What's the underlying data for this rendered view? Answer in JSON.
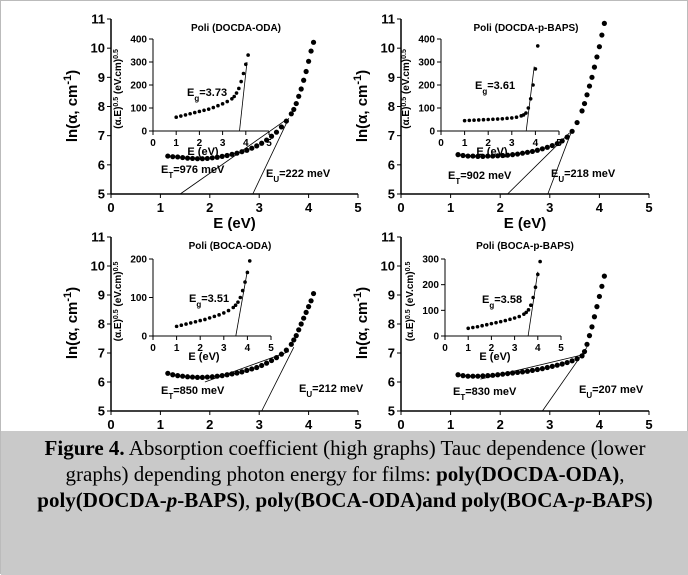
{
  "chart_data": [
    {
      "type": "scatter",
      "title": "Poli (DOCDA-ODA)",
      "xlabel": "E (eV)",
      "ylabel": [
        {
          "text": "ln(α, cm"
        },
        {
          "text": "-1",
          "sup": true
        },
        {
          "text": ")"
        }
      ],
      "x": [
        1.15,
        1.25,
        1.35,
        1.45,
        1.55,
        1.65,
        1.75,
        1.85,
        1.95,
        2.05,
        2.15,
        2.25,
        2.35,
        2.45,
        2.55,
        2.65,
        2.75,
        2.85,
        2.95,
        3.05,
        3.15,
        3.25,
        3.35,
        3.45,
        3.55,
        3.65,
        3.7,
        3.75,
        3.8,
        3.85,
        3.9,
        3.95,
        4.0,
        4.05,
        4.1
      ],
      "values": [
        6.3,
        6.28,
        6.27,
        6.25,
        6.23,
        6.22,
        6.21,
        6.21,
        6.22,
        6.24,
        6.26,
        6.29,
        6.32,
        6.36,
        6.4,
        6.45,
        6.5,
        6.57,
        6.65,
        6.74,
        6.85,
        6.98,
        7.12,
        7.3,
        7.5,
        7.75,
        7.9,
        8.1,
        8.35,
        8.6,
        8.9,
        9.2,
        9.55,
        9.9,
        10.2
      ],
      "color": "#000000",
      "fits": [
        {
          "x": [
            1.4,
            3.55
          ],
          "values": [
            5.0,
            7.55
          ]
        },
        {
          "x": [
            2.87,
            3.6
          ],
          "values": [
            5.0,
            7.6
          ]
        }
      ],
      "annotations": [
        [
          {
            "text": "E"
          },
          {
            "text": "T",
            "sub": true
          },
          {
            "text": "=976 meV"
          }
        ],
        [
          {
            "text": "E"
          },
          {
            "text": "U",
            "sub": true
          },
          {
            "text": "=222 meV"
          }
        ]
      ],
      "xlim": [
        0,
        5
      ],
      "ylim": [
        5,
        11
      ],
      "xticks": [
        0,
        1,
        2,
        3,
        4,
        5
      ],
      "yticks": [
        5,
        6,
        7,
        8,
        9,
        10,
        11
      ],
      "inset": {
        "type": "scatter",
        "xlabel": "E (eV)",
        "ylabel": [
          {
            "text": "(α.E)"
          },
          {
            "text": "0.5",
            "sup": true
          },
          {
            "text": " (eV.cm)"
          },
          {
            "text": "0.5",
            "sup": true
          }
        ],
        "x": [
          1.0,
          1.2,
          1.4,
          1.6,
          1.8,
          2.0,
          2.2,
          2.4,
          2.6,
          2.8,
          3.0,
          3.2,
          3.4,
          3.5,
          3.6,
          3.7,
          3.8,
          3.9,
          4.0,
          4.1
        ],
        "values": [
          60,
          65,
          70,
          75,
          80,
          85,
          90,
          95,
          102,
          110,
          118,
          128,
          140,
          150,
          165,
          185,
          215,
          250,
          290,
          330
        ],
        "color": "#000000",
        "fits": [
          {
            "x": [
              3.73,
              4.05
            ],
            "values": [
              0,
              300
            ]
          }
        ],
        "annotations": [
          [
            {
              "text": "E"
            },
            {
              "text": "g",
              "sub": true
            },
            {
              "text": "=3.73"
            }
          ]
        ],
        "xlim": [
          0,
          5
        ],
        "ylim": [
          0,
          400
        ],
        "xticks": [
          0,
          1,
          2,
          3,
          4,
          5
        ],
        "yticks": [
          0,
          100,
          200,
          300,
          400
        ]
      }
    },
    {
      "type": "scatter",
      "title": "Poli (DOCDA-p-BAPS)",
      "xlabel": "E (eV)",
      "ylabel": [
        {
          "text": "ln(α, cm"
        },
        {
          "text": "-1",
          "sup": true
        },
        {
          "text": ")"
        }
      ],
      "x": [
        1.15,
        1.25,
        1.35,
        1.45,
        1.55,
        1.65,
        1.75,
        1.85,
        1.95,
        2.05,
        2.15,
        2.25,
        2.35,
        2.45,
        2.55,
        2.65,
        2.75,
        2.85,
        2.95,
        3.05,
        3.15,
        3.25,
        3.35,
        3.45,
        3.55,
        3.65,
        3.7,
        3.75,
        3.8,
        3.85,
        3.9,
        3.95,
        4.0,
        4.05,
        4.1
      ],
      "values": [
        6.35,
        6.32,
        6.3,
        6.3,
        6.29,
        6.29,
        6.3,
        6.3,
        6.31,
        6.32,
        6.33,
        6.35,
        6.37,
        6.4,
        6.43,
        6.46,
        6.5,
        6.55,
        6.6,
        6.66,
        6.73,
        6.82,
        6.95,
        7.15,
        7.45,
        7.85,
        8.1,
        8.4,
        8.7,
        9.0,
        9.35,
        9.7,
        10.05,
        10.45,
        10.85
      ],
      "color": "#000000",
      "fits": [
        {
          "x": [
            2.15,
            3.4
          ],
          "values": [
            5.0,
            7.1
          ]
        },
        {
          "x": [
            2.96,
            3.45
          ],
          "values": [
            5.0,
            7.2
          ]
        }
      ],
      "annotations": [
        [
          {
            "text": "E"
          },
          {
            "text": "T",
            "sub": true
          },
          {
            "text": "=902 meV"
          }
        ],
        [
          {
            "text": "E"
          },
          {
            "text": "U",
            "sub": true
          },
          {
            "text": "=218 meV"
          }
        ]
      ],
      "xlim": [
        0,
        5
      ],
      "ylim": [
        5,
        11
      ],
      "xticks": [
        0,
        1,
        2,
        3,
        4,
        5
      ],
      "yticks": [
        5,
        6,
        7,
        8,
        9,
        10,
        11
      ],
      "inset": {
        "type": "scatter",
        "xlabel": "E (eV)",
        "ylabel": [
          {
            "text": "(α.E)"
          },
          {
            "text": "0.5",
            "sup": true
          },
          {
            "text": " (eV.cm)"
          },
          {
            "text": "0.5",
            "sup": true
          }
        ],
        "x": [
          1.0,
          1.2,
          1.4,
          1.6,
          1.8,
          2.0,
          2.2,
          2.4,
          2.6,
          2.8,
          3.0,
          3.2,
          3.4,
          3.5,
          3.6,
          3.7,
          3.8,
          3.9,
          4.0,
          4.1
        ],
        "values": [
          45,
          46,
          47,
          48,
          49,
          50,
          51,
          52,
          53,
          55,
          57,
          60,
          66,
          70,
          78,
          100,
          140,
          200,
          270,
          370
        ],
        "color": "#000000",
        "fits": [
          {
            "x": [
              3.61,
              3.95
            ],
            "values": [
              0,
              280
            ]
          }
        ],
        "annotations": [
          [
            {
              "text": "E"
            },
            {
              "text": "g",
              "sub": true
            },
            {
              "text": "=3.61"
            }
          ]
        ],
        "xlim": [
          0,
          5
        ],
        "ylim": [
          0,
          400
        ],
        "xticks": [
          0,
          1,
          2,
          3,
          4,
          5
        ],
        "yticks": [
          0,
          100,
          200,
          300,
          400
        ]
      }
    },
    {
      "type": "scatter",
      "title": "Poli (BOCA-ODA)",
      "xlabel": "E (eV)",
      "ylabel": [
        {
          "text": "ln(α, cm"
        },
        {
          "text": "-1",
          "sup": true
        },
        {
          "text": ")"
        }
      ],
      "x": [
        1.15,
        1.25,
        1.35,
        1.45,
        1.55,
        1.65,
        1.75,
        1.85,
        1.95,
        2.05,
        2.15,
        2.25,
        2.35,
        2.45,
        2.55,
        2.65,
        2.75,
        2.85,
        2.95,
        3.05,
        3.15,
        3.25,
        3.35,
        3.45,
        3.55,
        3.65,
        3.7,
        3.75,
        3.8,
        3.85,
        3.9,
        3.95,
        4.0,
        4.05,
        4.1
      ],
      "values": [
        6.3,
        6.25,
        6.22,
        6.2,
        6.18,
        6.17,
        6.16,
        6.16,
        6.17,
        6.18,
        6.2,
        6.22,
        6.25,
        6.28,
        6.31,
        6.35,
        6.4,
        6.45,
        6.5,
        6.57,
        6.65,
        6.74,
        6.84,
        6.96,
        7.1,
        7.3,
        7.45,
        7.6,
        7.8,
        8.0,
        8.2,
        8.4,
        8.6,
        8.8,
        9.05
      ],
      "color": "#000000",
      "fits": [
        {
          "x": [
            1.9,
            3.6
          ],
          "values": [
            6.0,
            7.05
          ]
        },
        {
          "x": [
            3.05,
            3.7
          ],
          "values": [
            5.0,
            7.2
          ]
        }
      ],
      "annotations": [
        [
          {
            "text": "E"
          },
          {
            "text": "T",
            "sub": true
          },
          {
            "text": "=850 meV"
          }
        ],
        [
          {
            "text": "E"
          },
          {
            "text": "U",
            "sub": true
          },
          {
            "text": "=212 meV"
          }
        ]
      ],
      "xlim": [
        0,
        5
      ],
      "ylim": [
        5,
        11
      ],
      "xticks": [
        0,
        1,
        2,
        3,
        4,
        5
      ],
      "yticks": [
        5,
        6,
        7,
        8,
        9,
        10,
        11
      ],
      "inset": {
        "type": "scatter",
        "xlabel": "E (eV)",
        "ylabel": [
          {
            "text": "(α.E)"
          },
          {
            "text": "0.5",
            "sup": true
          },
          {
            "text": " (eV.cm)"
          },
          {
            "text": "0.5",
            "sup": true
          }
        ],
        "x": [
          1.0,
          1.2,
          1.4,
          1.6,
          1.8,
          2.0,
          2.2,
          2.4,
          2.6,
          2.8,
          3.0,
          3.2,
          3.4,
          3.5,
          3.6,
          3.7,
          3.8,
          3.9,
          4.0,
          4.1
        ],
        "values": [
          25,
          28,
          31,
          34,
          37,
          40,
          43,
          47,
          51,
          55,
          60,
          66,
          74,
          80,
          88,
          100,
          118,
          140,
          165,
          195
        ],
        "color": "#000000",
        "fits": [
          {
            "x": [
              3.51,
              4.0
            ],
            "values": [
              0,
              170
            ]
          }
        ],
        "annotations": [
          [
            {
              "text": "E"
            },
            {
              "text": "g",
              "sub": true
            },
            {
              "text": "=3.51"
            }
          ]
        ],
        "xlim": [
          0,
          5
        ],
        "ylim": [
          0,
          200
        ],
        "xticks": [
          0,
          1,
          2,
          3,
          4,
          5
        ],
        "yticks": [
          0,
          100,
          200
        ]
      }
    },
    {
      "type": "scatter",
      "title": "Poli (BOCA-p-BAPS)",
      "xlabel": "E (eV)",
      "ylabel": [
        {
          "text": "ln(α, cm"
        },
        {
          "text": "-1",
          "sup": true
        },
        {
          "text": ")"
        }
      ],
      "x": [
        1.15,
        1.25,
        1.35,
        1.45,
        1.55,
        1.65,
        1.75,
        1.85,
        1.95,
        2.05,
        2.15,
        2.25,
        2.35,
        2.45,
        2.55,
        2.65,
        2.75,
        2.85,
        2.95,
        3.05,
        3.15,
        3.25,
        3.35,
        3.45,
        3.55,
        3.65,
        3.7,
        3.75,
        3.8,
        3.85,
        3.9,
        3.95,
        4.0,
        4.05,
        4.1
      ],
      "values": [
        6.25,
        6.22,
        6.2,
        6.2,
        6.2,
        6.21,
        6.22,
        6.23,
        6.25,
        6.27,
        6.29,
        6.31,
        6.33,
        6.35,
        6.37,
        6.4,
        6.43,
        6.46,
        6.5,
        6.54,
        6.58,
        6.62,
        6.67,
        6.73,
        6.8,
        6.9,
        7.05,
        7.3,
        7.6,
        7.9,
        8.25,
        8.6,
        8.95,
        9.3,
        9.65
      ],
      "color": "#000000",
      "fits": [
        {
          "x": [
            1.6,
            3.7
          ],
          "values": [
            6.1,
            6.95
          ]
        },
        {
          "x": [
            2.85,
            3.75
          ],
          "values": [
            5.0,
            7.2
          ]
        }
      ],
      "annotations": [
        [
          {
            "text": "E"
          },
          {
            "text": "T",
            "sub": true
          },
          {
            "text": "=830 meV"
          }
        ],
        [
          {
            "text": "E"
          },
          {
            "text": "U",
            "sub": true
          },
          {
            "text": "=207 meV"
          }
        ]
      ],
      "xlim": [
        0,
        5
      ],
      "ylim": [
        5,
        11
      ],
      "xticks": [
        0,
        1,
        2,
        3,
        4,
        5
      ],
      "yticks": [
        5,
        6,
        7,
        8,
        9,
        10,
        11
      ],
      "inset": {
        "type": "scatter",
        "xlabel": "E (eV)",
        "ylabel": [
          {
            "text": "(α.E)"
          },
          {
            "text": "0.5",
            "sup": true
          },
          {
            "text": " (eV.cm)"
          },
          {
            "text": "0.5",
            "sup": true
          }
        ],
        "x": [
          1.0,
          1.2,
          1.4,
          1.6,
          1.8,
          2.0,
          2.2,
          2.4,
          2.6,
          2.8,
          3.0,
          3.2,
          3.4,
          3.5,
          3.6,
          3.7,
          3.8,
          3.9,
          4.0,
          4.1
        ],
        "values": [
          30,
          33,
          36,
          40,
          44,
          48,
          52,
          56,
          60,
          65,
          70,
          76,
          85,
          92,
          102,
          120,
          150,
          190,
          240,
          290
        ],
        "color": "#000000",
        "fits": [
          {
            "x": [
              3.58,
              4.0
            ],
            "values": [
              0,
              250
            ]
          }
        ],
        "annotations": [
          [
            {
              "text": "E"
            },
            {
              "text": "g",
              "sub": true
            },
            {
              "text": "=3.58"
            }
          ]
        ],
        "xlim": [
          0,
          5
        ],
        "ylim": [
          0,
          300
        ],
        "xticks": [
          0,
          1,
          2,
          3,
          4,
          5
        ],
        "yticks": [
          0,
          100,
          200,
          300
        ]
      }
    }
  ],
  "caption": [
    {
      "text": "Figure 4.",
      "bold": true
    },
    {
      "text": " Absorption coefficient (high graphs) Tauc dependence (lower graphs) depending photon energy for films: "
    },
    {
      "text": "poly(DOCDA-ODA)",
      "bold": true
    },
    {
      "text": ", "
    },
    {
      "text": "poly(DOCDA-",
      "bold": true
    },
    {
      "text": "p",
      "bold": true,
      "italic": true
    },
    {
      "text": "-BAPS)",
      "bold": true
    },
    {
      "text": ", "
    },
    {
      "text": "poly(BOCA-ODA)and poly(BOCA-",
      "bold": true
    },
    {
      "text": "p",
      "bold": true,
      "italic": true
    },
    {
      "text": "-BAPS)",
      "bold": true
    }
  ]
}
